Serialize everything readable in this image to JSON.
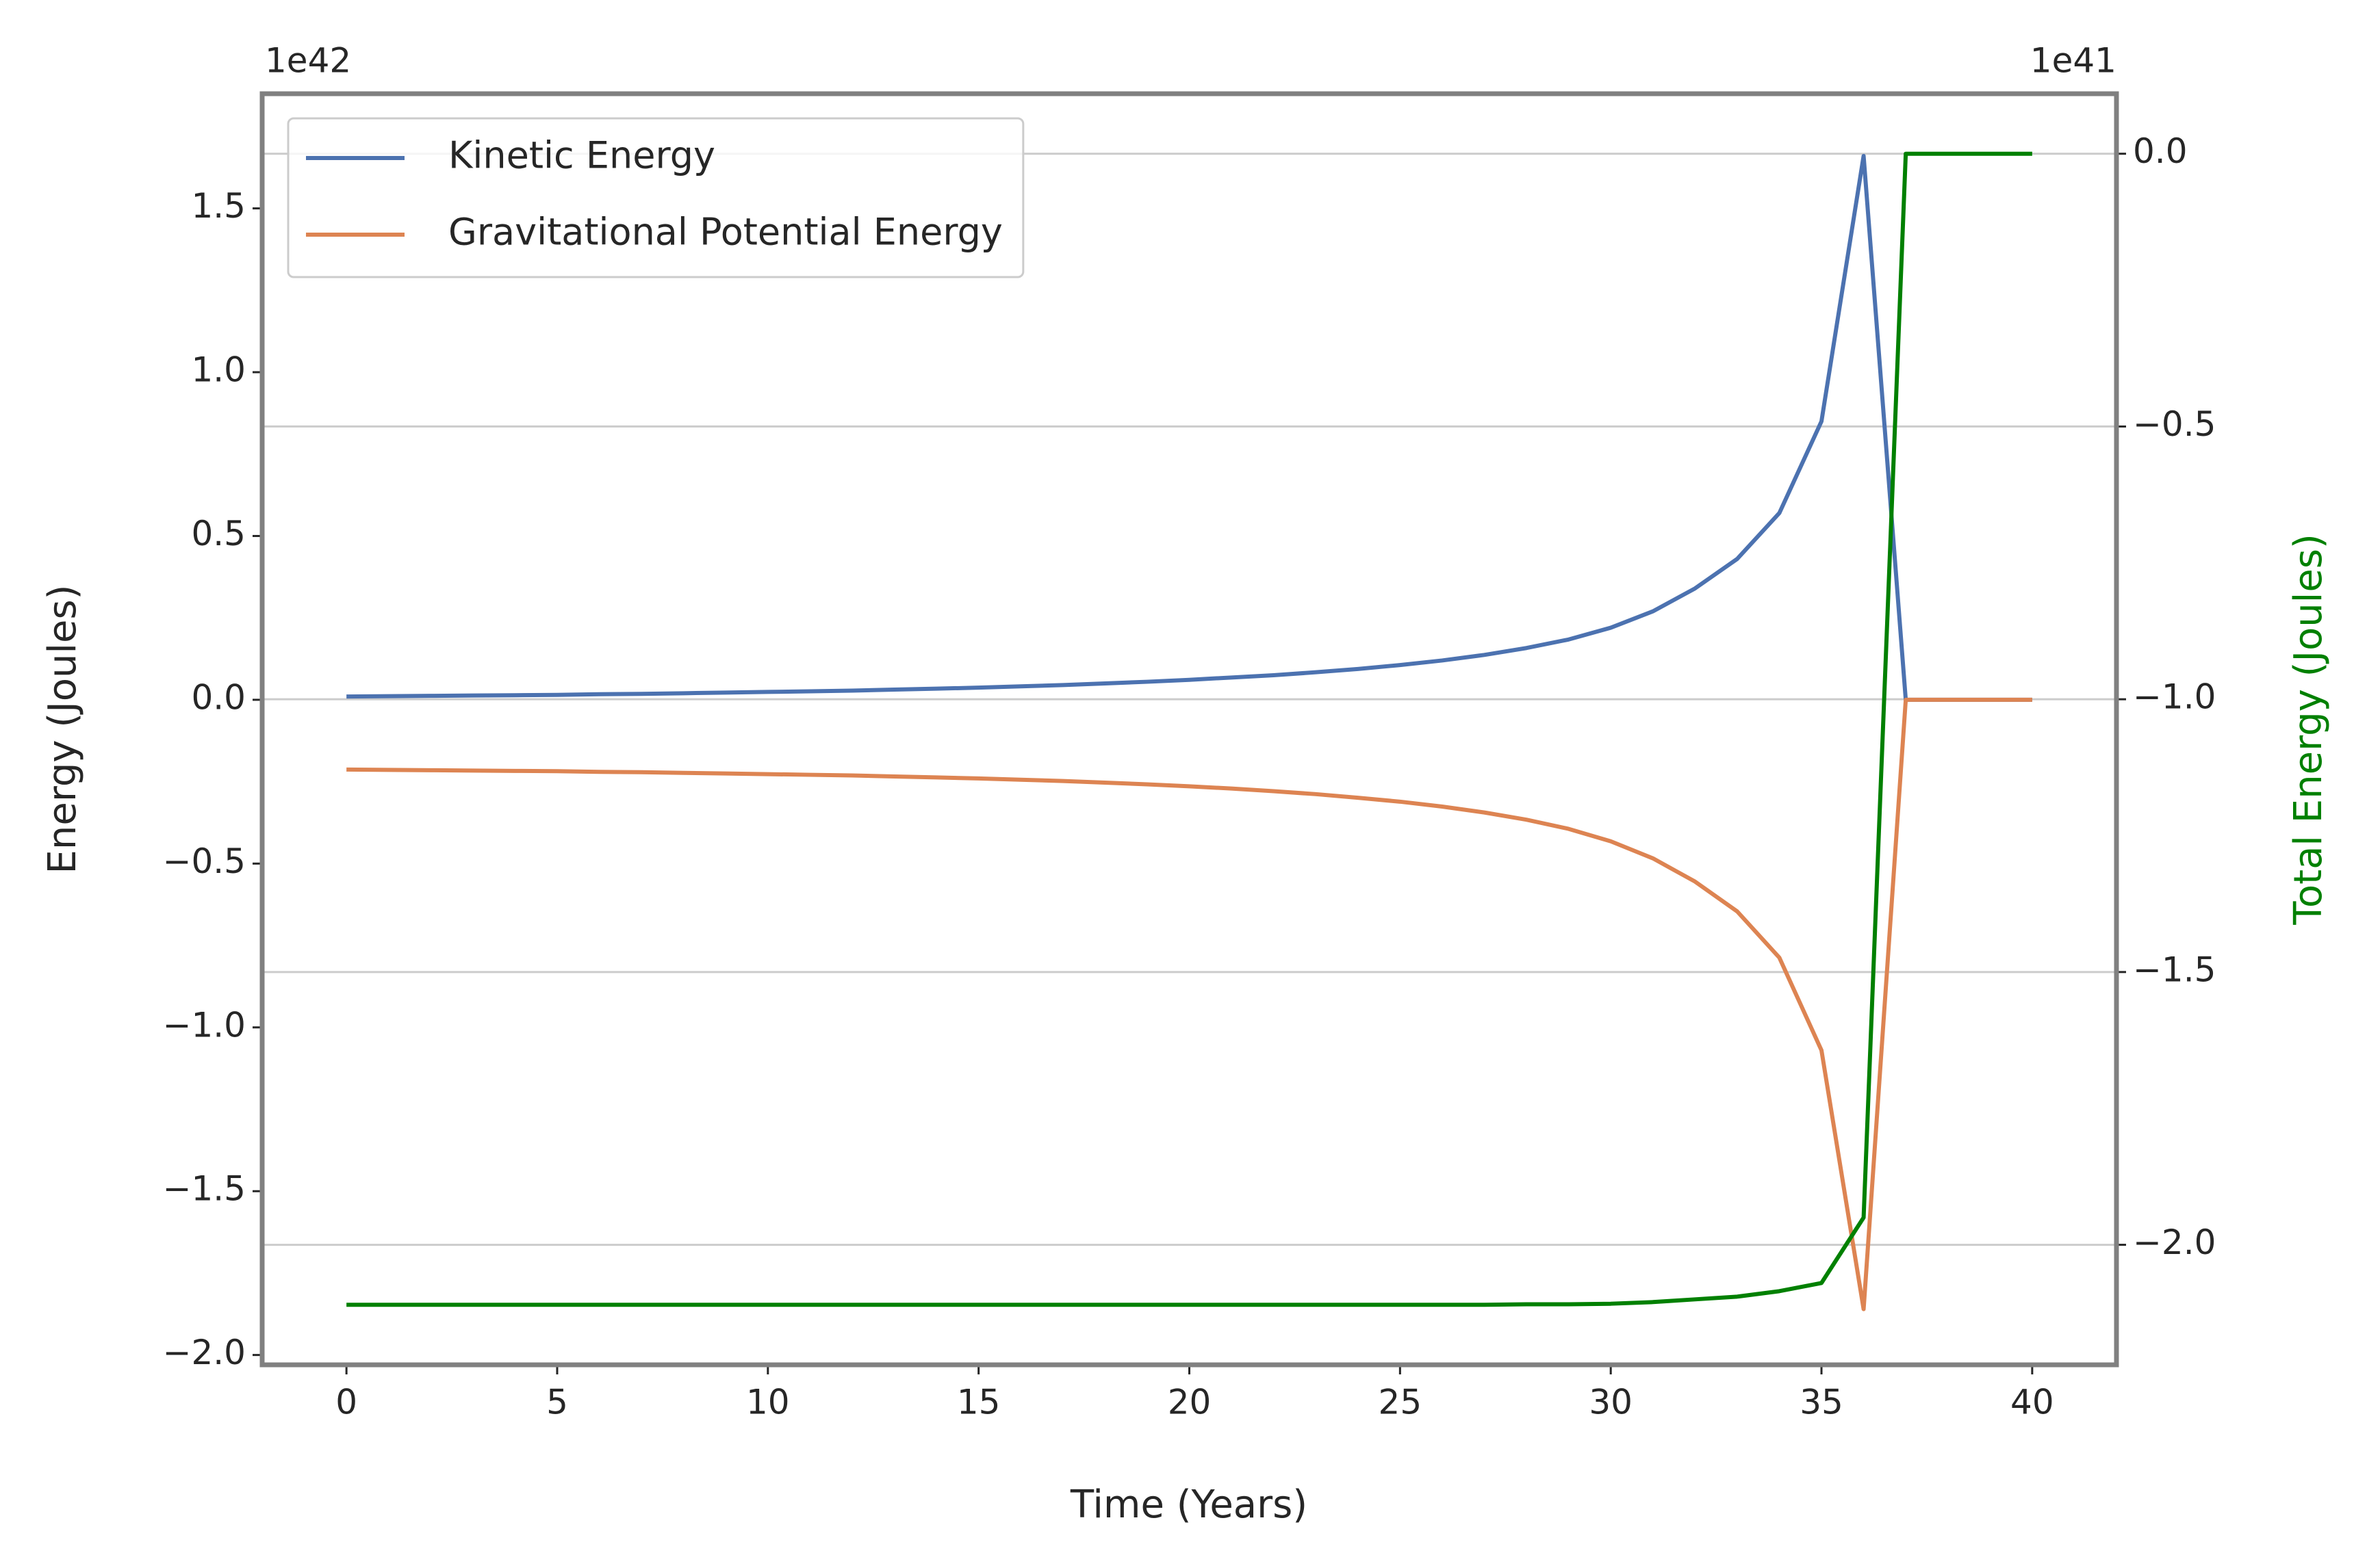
{
  "chart_data": {
    "type": "line",
    "xlabel": "Time (Years)",
    "ylabel": "Energy (Joules)",
    "y2label": "Total Energy (Joules)",
    "y_offset_label": "1e42",
    "y2_offset_label": "1e41",
    "x": [
      0,
      1,
      2,
      3,
      4,
      5,
      6,
      7,
      8,
      9,
      10,
      11,
      12,
      13,
      14,
      15,
      16,
      17,
      18,
      19,
      20,
      21,
      22,
      23,
      24,
      25,
      26,
      27,
      28,
      29,
      30,
      31,
      32,
      33,
      34,
      35,
      36,
      37,
      38,
      39,
      40
    ],
    "series": [
      {
        "name": "Kinetic Energy",
        "color": "#4c72b0",
        "axis": "y",
        "values": [
          0.01,
          0.011,
          0.012,
          0.013,
          0.014,
          0.015,
          0.017,
          0.018,
          0.02,
          0.022,
          0.024,
          0.026,
          0.028,
          0.031,
          0.034,
          0.037,
          0.041,
          0.045,
          0.05,
          0.055,
          0.061,
          0.068,
          0.075,
          0.084,
          0.094,
          0.106,
          0.12,
          0.137,
          0.158,
          0.184,
          0.22,
          0.27,
          0.34,
          0.43,
          0.57,
          0.85,
          1.66,
          0,
          0,
          0,
          0
        ]
      },
      {
        "name": "Gravitational Potential Energy",
        "color": "#dd8452",
        "axis": "y",
        "values": [
          -0.213,
          -0.214,
          -0.215,
          -0.216,
          -0.217,
          -0.218,
          -0.22,
          -0.221,
          -0.223,
          -0.225,
          -0.227,
          -0.229,
          -0.231,
          -0.234,
          -0.237,
          -0.24,
          -0.244,
          -0.248,
          -0.253,
          -0.258,
          -0.264,
          -0.271,
          -0.279,
          -0.288,
          -0.299,
          -0.311,
          -0.326,
          -0.344,
          -0.366,
          -0.394,
          -0.432,
          -0.484,
          -0.555,
          -0.646,
          -0.787,
          -1.07,
          -1.86,
          0,
          0,
          0,
          0
        ]
      },
      {
        "color": "#008000",
        "axis": "y2",
        "values": [
          -2.11,
          -2.11,
          -2.11,
          -2.11,
          -2.11,
          -2.11,
          -2.11,
          -2.11,
          -2.11,
          -2.11,
          -2.11,
          -2.11,
          -2.11,
          -2.11,
          -2.11,
          -2.11,
          -2.11,
          -2.11,
          -2.11,
          -2.11,
          -2.11,
          -2.11,
          -2.11,
          -2.11,
          -2.11,
          -2.11,
          -2.11,
          -2.11,
          -2.109,
          -2.109,
          -2.108,
          -2.105,
          -2.1,
          -2.095,
          -2.085,
          -2.07,
          -1.95,
          0,
          0,
          0,
          0
        ]
      }
    ],
    "xlim": [
      -2,
      42
    ],
    "xticks": [
      0,
      5,
      10,
      15,
      20,
      25,
      30,
      35,
      40
    ],
    "ylim": [
      -2.03,
      1.85
    ],
    "yticks": [
      {
        "value": -2.0,
        "label": "−2.0"
      },
      {
        "value": -1.5,
        "label": "−1.5"
      },
      {
        "value": -1.0,
        "label": "−1.0"
      },
      {
        "value": -0.5,
        "label": "−0.5"
      },
      {
        "value": 0.0,
        "label": "0.0"
      },
      {
        "value": 0.5,
        "label": "0.5"
      },
      {
        "value": 1.0,
        "label": "1.0"
      },
      {
        "value": 1.5,
        "label": "1.5"
      }
    ],
    "y2lim": [
      -2.22,
      0.11
    ],
    "y2ticks": [
      {
        "value": -2.0,
        "label": "−2.0"
      },
      {
        "value": -1.5,
        "label": "−1.5"
      },
      {
        "value": -1.0,
        "label": "−1.0"
      },
      {
        "value": -0.5,
        "label": "−0.5"
      },
      {
        "value": 0.0,
        "label": "0.0"
      }
    ],
    "grid": "y2",
    "legend": "upper left"
  }
}
